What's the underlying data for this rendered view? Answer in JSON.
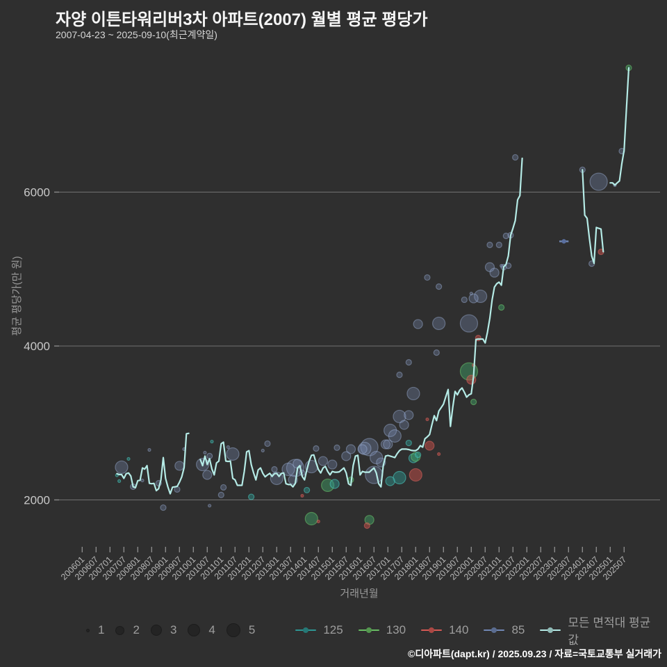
{
  "header": {
    "title": "자양 이튼타워리버3차 아파트(2007) 월별 평균 평당가",
    "subtitle": "2007-04-23 ~ 2025-09-10(최근계약일)"
  },
  "footer": {
    "credit": "©디아파트(dapt.kr) / 2025.09.23 / 자료=국토교통부 실거래가"
  },
  "colors": {
    "background": "#2f2f2f",
    "grid": "#a8a8a8",
    "tick_mark": "#8a8a8a",
    "x_tick_label": "#b8b8b8",
    "y_tick_label": "#c9c9c9",
    "axis_label": "#9a9a9a",
    "title": "#f5f5f5",
    "subtitle": "#d6d6d6",
    "legend_text": "#9e9e9e",
    "footer_text": "#ffffff",
    "size_bubble": "#242424",
    "series": {
      "s125": "#2e9693",
      "s130": "#69bd63",
      "s140": "#d65a55",
      "s85": "#7187b4",
      "avg": "#b5ebe6"
    }
  },
  "legend": {
    "sizes": [
      "1",
      "2",
      "3",
      "4",
      "5"
    ],
    "series": [
      {
        "id": "s125",
        "label": "125"
      },
      {
        "id": "s130",
        "label": "130"
      },
      {
        "id": "s140",
        "label": "140"
      },
      {
        "id": "s85",
        "label": "85"
      },
      {
        "id": "avg",
        "label": "모든 면적대 평균값"
      }
    ]
  },
  "chart_data": {
    "type": "line+scatter",
    "title": "자양 이튼타워리버3차 아파트(2007) 월별 평균 평당가",
    "xlabel": "거래년월",
    "ylabel": "평균 평당가(만 원)",
    "legend_position": "bottom",
    "grid": "horizontal-only",
    "y_ticks": [
      2000,
      4000,
      6000
    ],
    "ylim": [
      1600,
      7800
    ],
    "x_ticks": [
      "200601",
      "200607",
      "200701",
      "200707",
      "200801",
      "200807",
      "200901",
      "200907",
      "201001",
      "201007",
      "201101",
      "201107",
      "201201",
      "201207",
      "201301",
      "201307",
      "201401",
      "201407",
      "201501",
      "201507",
      "201601",
      "201607",
      "201701",
      "201707",
      "201801",
      "201807",
      "201901",
      "201907",
      "202001",
      "202007",
      "202101",
      "202107",
      "202201",
      "202207",
      "202301",
      "202307",
      "202401",
      "202407",
      "202501",
      "202507"
    ],
    "avg_line": {
      "name": "모든 면적대 평균값",
      "segments": [
        {
          "start": "200704",
          "values": [
            2340,
            2330,
            2330,
            2280,
            2340,
            2350,
            2310,
            2170,
            2160,
            2250,
            2255,
            2415,
            2400,
            2445,
            2215,
            2210,
            2215,
            2120,
            2145,
            2260,
            2550,
            2280,
            2170,
            2080,
            2165,
            2170,
            2175,
            2230,
            2300,
            2420,
            2860,
            2865
          ]
        },
        {
          "start": "201004",
          "values": [
            2525,
            2445,
            2570,
            2460,
            2535,
            2400,
            2325,
            2480,
            2505,
            2730,
            2750,
            2505,
            2500,
            2505,
            2280,
            2260,
            2190,
            2190,
            2190,
            2370,
            2625,
            2640,
            2460,
            2350,
            2260,
            2390,
            2415,
            2345,
            2300,
            2325,
            2345,
            2305,
            2340,
            2345,
            2305,
            2345,
            2350,
            2210,
            2200,
            2200,
            2170,
            2215,
            2415,
            2445,
            2305,
            2260,
            2390,
            2505,
            2580,
            2585,
            2480,
            2395,
            2350,
            2415,
            2435,
            2370,
            2325,
            2370,
            2360,
            2360,
            2365,
            2390,
            2415,
            2350,
            2210,
            2190,
            2445,
            2570,
            2580,
            2325,
            2370,
            2360,
            2360,
            2360,
            2390,
            2415,
            2350,
            2210,
            2170,
            2445,
            2570,
            2578,
            2570,
            2560,
            2550,
            2600,
            2640,
            2660,
            2660,
            2660,
            2655,
            2645,
            2640,
            2640,
            2660,
            2705,
            2685,
            2795,
            2820,
            2850,
            2975,
            3095,
            3030,
            3155,
            3200,
            3245,
            3340,
            3435,
            2955,
            3200,
            3410,
            3365,
            3425,
            3455,
            3400,
            3335,
            3365,
            3380,
            3610,
            4085,
            4090,
            4090,
            4090,
            4040,
            4180,
            4360,
            4600,
            4765,
            4810,
            4830,
            4790,
            5030,
            5060,
            5170,
            5440,
            5530,
            5630,
            5900,
            5955,
            6440
          ]
        },
        {
          "start": "202401",
          "values": [
            6290,
            5700,
            5660,
            5400,
            5170,
            5075,
            5540,
            5530,
            5520,
            5225
          ]
        },
        {
          "start": "202501",
          "values": [
            6120,
            6120,
            6090,
            6120,
            6145,
            6370,
            6545,
            7080,
            7615
          ]
        }
      ]
    },
    "series_85_segment": {
      "series": "s85",
      "months": [
        "202303",
        "202307"
      ],
      "value": 5360
    },
    "scatter": {
      "s85": [
        [
          "200706",
          2425,
          4
        ],
        [
          "200711",
          2172,
          2
        ],
        [
          "200803",
          2253,
          1
        ],
        [
          "200806",
          2650,
          1
        ],
        [
          "200810",
          2217,
          2
        ],
        [
          "200812",
          1900,
          2
        ],
        [
          "200906",
          2136,
          2
        ],
        [
          "200907",
          2443,
          3
        ],
        [
          "200909",
          2660,
          1
        ],
        [
          "201005",
          2460,
          4
        ],
        [
          "201006",
          2614,
          1
        ],
        [
          "201007",
          2325,
          3
        ],
        [
          "201008",
          2570,
          2
        ],
        [
          "201008",
          1925,
          1
        ],
        [
          "201101",
          2064,
          2
        ],
        [
          "201102",
          2163,
          2
        ],
        [
          "201104",
          2686,
          1
        ],
        [
          "201106",
          2596,
          4
        ],
        [
          "201207",
          2641,
          1
        ],
        [
          "201209",
          2731,
          2
        ],
        [
          "201212",
          2397,
          2
        ],
        [
          "201301",
          2280,
          4
        ],
        [
          "201306",
          2397,
          4
        ],
        [
          "201308",
          2262,
          3
        ],
        [
          "201309",
          2415,
          5
        ],
        [
          "201310",
          2470,
          3
        ],
        [
          "201312",
          2352,
          2
        ],
        [
          "201404",
          2433,
          4
        ],
        [
          "201406",
          2668,
          2
        ],
        [
          "201409",
          2505,
          3
        ],
        [
          "201501",
          2460,
          3
        ],
        [
          "201503",
          2678,
          2
        ],
        [
          "201507",
          2569,
          3
        ],
        [
          "201509",
          2659,
          3
        ],
        [
          "201602",
          2659,
          3
        ],
        [
          "201603",
          2668,
          4
        ],
        [
          "201605",
          2686,
          5
        ],
        [
          "201607",
          2325,
          5
        ],
        [
          "201608",
          2550,
          4
        ],
        [
          "201610",
          2487,
          3
        ],
        [
          "201612",
          2722,
          3
        ],
        [
          "201701",
          2722,
          3
        ],
        [
          "201702",
          2903,
          4
        ],
        [
          "201704",
          2831,
          4
        ],
        [
          "201706",
          3084,
          4
        ],
        [
          "201706",
          3625,
          2
        ],
        [
          "201708",
          2975,
          3
        ],
        [
          "201710",
          3102,
          3
        ],
        [
          "201710",
          3788,
          2
        ],
        [
          "201712",
          3382,
          4
        ],
        [
          "201802",
          4285,
          3
        ],
        [
          "201806",
          4890,
          2
        ],
        [
          "201810",
          3914,
          2
        ],
        [
          "201811",
          4772,
          2
        ],
        [
          "201811",
          4294,
          4
        ],
        [
          "201910",
          4601,
          2
        ],
        [
          "201912",
          4294,
          5
        ],
        [
          "202001",
          4682,
          1
        ],
        [
          "202002",
          4619,
          3
        ],
        [
          "202005",
          4646,
          4
        ],
        [
          "202009",
          5025,
          3
        ],
        [
          "202009",
          5314,
          2
        ],
        [
          "202011",
          4953,
          3
        ],
        [
          "202101",
          5314,
          2
        ],
        [
          "202102",
          5043,
          1
        ],
        [
          "202103",
          5025,
          2
        ],
        [
          "202104",
          5431,
          2
        ],
        [
          "202105",
          5043,
          2
        ],
        [
          "202106",
          5440,
          2
        ],
        [
          "202108",
          6452,
          2
        ],
        [
          "202401",
          6290,
          2
        ],
        [
          "202405",
          5070,
          2
        ],
        [
          "202408",
          6135,
          5
        ],
        [
          "202503",
          6090,
          1
        ],
        [
          "202506",
          6533,
          2
        ]
      ],
      "s125": [
        [
          "200704",
          2320,
          1
        ],
        [
          "200705",
          2245,
          1
        ],
        [
          "200709",
          2533,
          1
        ],
        [
          "201009",
          2758,
          1
        ],
        [
          "201202",
          2040,
          2
        ],
        [
          "201402",
          2127,
          2
        ],
        [
          "201502",
          2208,
          3
        ],
        [
          "201702",
          2244,
          3
        ],
        [
          "201706",
          2289,
          4
        ],
        [
          "201710",
          2740,
          2
        ],
        [
          "201712",
          2542,
          3
        ],
        [
          "201802",
          2587,
          2
        ]
      ],
      "s130": [
        [
          "201404",
          1756,
          4
        ],
        [
          "201411",
          2190,
          4
        ],
        [
          "201509",
          2262,
          2
        ],
        [
          "201605",
          1740,
          3
        ],
        [
          "201801",
          2560,
          3
        ],
        [
          "201912",
          3670,
          5
        ],
        [
          "202002",
          3273,
          2
        ],
        [
          "202102",
          4501,
          2
        ],
        [
          "202509",
          7615,
          2
        ]
      ],
      "s140": [
        [
          "201312",
          2054,
          1
        ],
        [
          "201407",
          1720,
          1
        ],
        [
          "201604",
          1666,
          2
        ],
        [
          "201801",
          2325,
          4
        ],
        [
          "201806",
          3047,
          1
        ],
        [
          "201807",
          2704,
          3
        ],
        [
          "201811",
          2596,
          1
        ],
        [
          "202001",
          3562,
          3
        ],
        [
          "202002",
          3751,
          1
        ],
        [
          "202004",
          4104,
          2
        ],
        [
          "202409",
          5224,
          2
        ]
      ]
    }
  }
}
